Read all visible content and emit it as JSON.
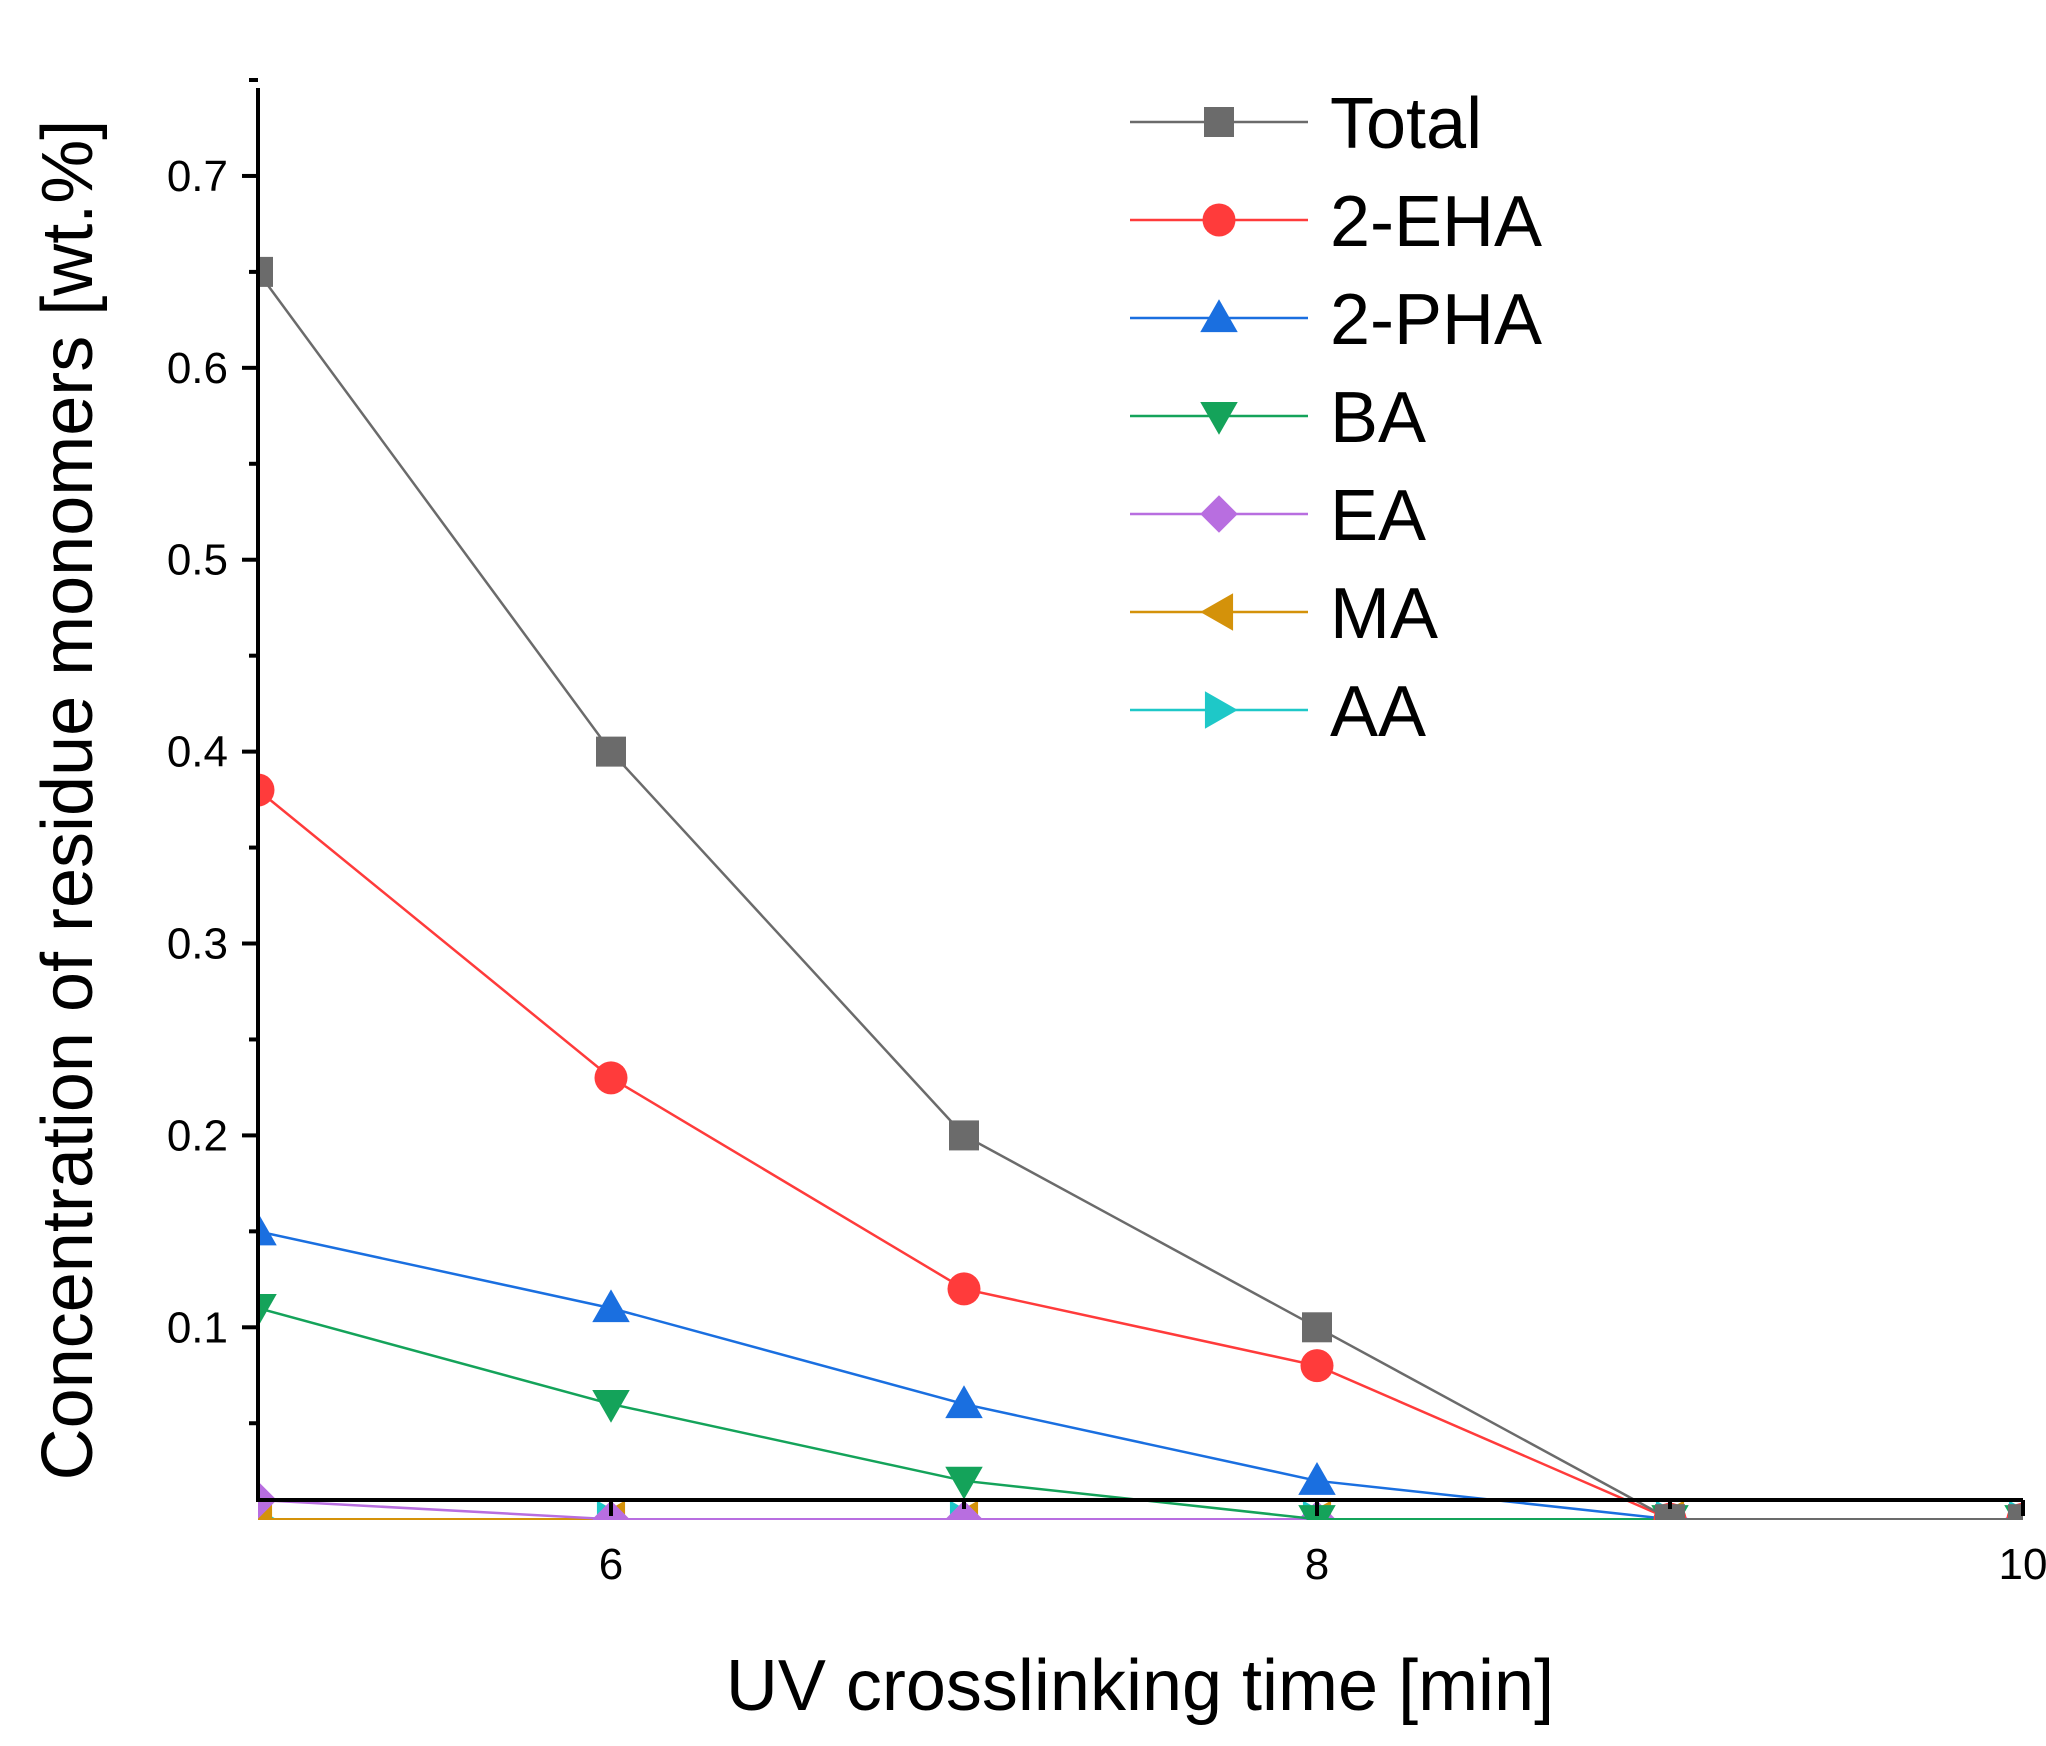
{
  "chart_data": {
    "type": "line",
    "xlabel": "UV crosslinking time [min]",
    "ylabel": "Concentration of residue monomers [wt.%]",
    "xlim": [
      5,
      10
    ],
    "ylim": [
      0.01,
      0.75
    ],
    "x_ticks": [
      {
        "value": 6,
        "label": "6"
      },
      {
        "value": 8,
        "label": "8"
      },
      {
        "value": 10,
        "label": "10"
      }
    ],
    "y_ticks": [
      {
        "value": 0.1,
        "label": "0.1"
      },
      {
        "value": 0.2,
        "label": "0.2"
      },
      {
        "value": 0.3,
        "label": "0.3"
      },
      {
        "value": 0.4,
        "label": "0.4"
      },
      {
        "value": 0.5,
        "label": "0.5"
      },
      {
        "value": 0.6,
        "label": "0.6"
      },
      {
        "value": 0.7,
        "label": "0.7"
      }
    ],
    "x_minor_ticks": [
      7,
      9
    ],
    "y_minor_ticks": [
      0.05,
      0.15,
      0.25,
      0.35,
      0.45,
      0.55,
      0.65,
      0.75
    ],
    "grid": false,
    "legend_position": "top-right",
    "x": [
      5,
      6,
      7,
      8,
      9,
      10
    ],
    "series": [
      {
        "name": "Total",
        "marker": "square",
        "color": "#6b6b6b",
        "values": [
          0.65,
          0.4,
          0.2,
          0.1,
          0.0,
          0.0
        ]
      },
      {
        "name": "2-EHA",
        "marker": "circle",
        "color": "#ff3b3b",
        "values": [
          0.38,
          0.23,
          0.12,
          0.08,
          0.0,
          0.0
        ]
      },
      {
        "name": "2-PHA",
        "marker": "triangle-up",
        "color": "#1a6fe0",
        "values": [
          0.15,
          0.11,
          0.06,
          0.02,
          0.0,
          0.0
        ]
      },
      {
        "name": "BA",
        "marker": "triangle-down",
        "color": "#14a35a",
        "values": [
          0.11,
          0.06,
          0.02,
          0.0,
          0.0,
          0.0
        ]
      },
      {
        "name": "EA",
        "marker": "diamond",
        "color": "#b86ee0",
        "values": [
          0.01,
          0.0,
          0.0,
          0.0,
          0.0,
          0.0
        ]
      },
      {
        "name": "MA",
        "marker": "triangle-left",
        "color": "#d4920a",
        "values": [
          0.0,
          0.0,
          0.0,
          0.0,
          0.0,
          0.0
        ]
      },
      {
        "name": "AA",
        "marker": "triangle-right",
        "color": "#1ec8c8",
        "values": [
          0.0,
          0.0,
          0.0,
          0.0,
          0.0,
          0.0
        ]
      }
    ]
  }
}
